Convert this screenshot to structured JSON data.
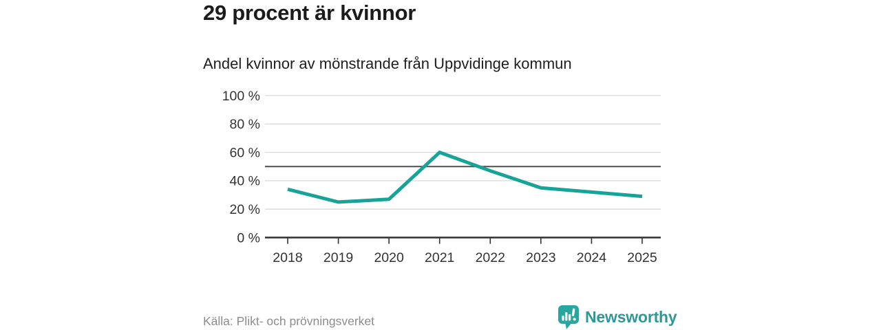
{
  "header": {
    "title": "29 procent är kvinnor",
    "subtitle": "Andel kvinnor av mönstrande från Uppvidinge kommun"
  },
  "footer": {
    "source": "Källa: Plikt- och prövningsverket",
    "brand": "Newsworthy"
  },
  "colors": {
    "line": "#17a398",
    "reference_line": "#4f4f4f",
    "grid": "#d9d9d9",
    "axis": "#2e2e2e",
    "tick_label": "#333333",
    "logo_icon_teal": "#2aa6a1",
    "brand_text_teal": "#2f9795",
    "source_text": "#8c8c8c",
    "title_text": "#1b1b1b",
    "background": "#ffffff"
  },
  "chart_data": {
    "type": "line",
    "title": "29 procent är kvinnor",
    "subtitle": "Andel kvinnor av mönstrande från Uppvidinge kommun",
    "x": [
      "2018",
      "2019",
      "2020",
      "2021",
      "2022",
      "2023",
      "2024",
      "2025"
    ],
    "values": [
      34,
      25,
      27,
      60,
      47,
      35,
      32,
      29
    ],
    "unit": "%",
    "xlabel": "",
    "ylabel": "",
    "ylim": [
      0,
      100
    ],
    "yticks": [
      0,
      20,
      40,
      60,
      80,
      100
    ],
    "ytick_suffix": " %",
    "reference_line": 50,
    "grid": true,
    "legend": "none",
    "source": "Källa: Plikt- och prövningsverket"
  }
}
